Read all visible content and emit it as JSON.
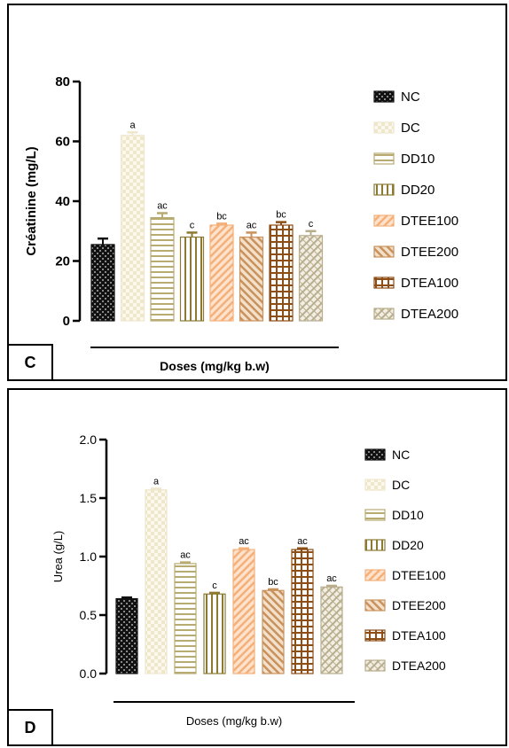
{
  "chart_data": [
    {
      "panel": "C",
      "type": "bar",
      "ylabel": "Créatinine (mg/L)",
      "xlabel": "Doses (mg/kg b.w)",
      "ylim": [
        0,
        80
      ],
      "yticks": [
        0,
        20,
        40,
        60,
        80
      ],
      "ytick_labels": [
        "0",
        "20",
        "40",
        "60",
        "80"
      ],
      "grid": false,
      "legend_position": "right",
      "categories": [
        "NC",
        "DC",
        "DD10",
        "DD20",
        "DTEE100",
        "DTEE200",
        "DTEA100",
        "DTEA200"
      ],
      "values": [
        25.5,
        62,
        34.5,
        28,
        32,
        28,
        32,
        28.5
      ],
      "errors": [
        2,
        1,
        1.5,
        1.5,
        0.5,
        1.5,
        1,
        1.5
      ],
      "labels": [
        "",
        "a",
        "ac",
        "c",
        "bc",
        "ac",
        "bc",
        "c"
      ]
    },
    {
      "panel": "D",
      "type": "bar",
      "ylabel": "Urea (g/L)",
      "xlabel": "Doses (mg/kg b.w)",
      "ylim": [
        0,
        2.0
      ],
      "yticks": [
        0,
        0.5,
        1.0,
        1.5,
        2.0
      ],
      "ytick_labels": [
        "0.0",
        "0.5",
        "1.0",
        "1.5",
        "2.0"
      ],
      "grid": false,
      "legend_position": "right",
      "categories": [
        "NC",
        "DC",
        "DD10",
        "DD20",
        "DTEE100",
        "DTEE200",
        "DTEA100",
        "DTEA200"
      ],
      "values": [
        0.64,
        1.57,
        0.94,
        0.68,
        1.06,
        0.71,
        1.06,
        0.74
      ],
      "errors": [
        0.01,
        0.01,
        0.01,
        0.01,
        0.01,
        0.01,
        0.01,
        0.01
      ],
      "labels": [
        "",
        "a",
        "ac",
        "c",
        "ac",
        "bc",
        "ac",
        "ac"
      ]
    }
  ],
  "series_styles": [
    {
      "name": "NC",
      "color": "#111111",
      "pattern": "dark-check"
    },
    {
      "name": "DC",
      "color": "#efe7cc",
      "pattern": "light-check"
    },
    {
      "name": "DD10",
      "color": "#b8ab72",
      "pattern": "horizontal"
    },
    {
      "name": "DD20",
      "color": "#8c7a32",
      "pattern": "vertical"
    },
    {
      "name": "DTEE100",
      "color": "#f5b07a",
      "pattern": "diagonal"
    },
    {
      "name": "DTEE200",
      "color": "#c9925c",
      "pattern": "diagonal-back"
    },
    {
      "name": "DTEA100",
      "color": "#8c4e14",
      "pattern": "grid"
    },
    {
      "name": "DTEA200",
      "color": "#b8ad8c",
      "pattern": "zigzag"
    }
  ]
}
